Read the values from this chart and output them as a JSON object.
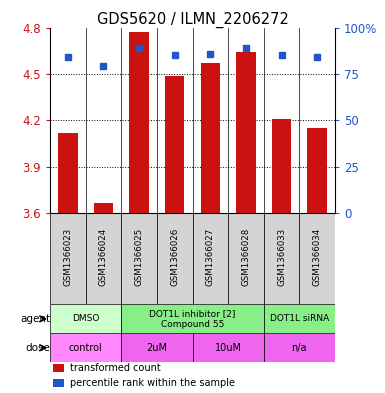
{
  "title": "GDS5620 / ILMN_2206272",
  "samples": [
    "GSM1366023",
    "GSM1366024",
    "GSM1366025",
    "GSM1366026",
    "GSM1366027",
    "GSM1366028",
    "GSM1366033",
    "GSM1366034"
  ],
  "bar_values": [
    4.12,
    3.67,
    4.77,
    4.49,
    4.57,
    4.64,
    4.21,
    4.15
  ],
  "bar_bottom": 3.6,
  "dot_values": [
    4.61,
    4.55,
    4.67,
    4.62,
    4.63,
    4.67,
    4.62,
    4.61
  ],
  "ylim": [
    3.6,
    4.8
  ],
  "y_ticks": [
    3.6,
    3.9,
    4.2,
    4.5,
    4.8
  ],
  "y_tick_labels": [
    "3.6",
    "3.9",
    "4.2",
    "4.5",
    "4.8"
  ],
  "y2_ticks": [
    0,
    25,
    50,
    75,
    100
  ],
  "y2_tick_labels": [
    "0",
    "25",
    "50",
    "75",
    "100%"
  ],
  "bar_color": "#cc1111",
  "dot_color": "#2255cc",
  "agent_groups": [
    {
      "label": "DMSO",
      "cols": [
        0,
        1
      ],
      "color": "#ccffcc"
    },
    {
      "label": "DOT1L inhibitor [2]\nCompound 55",
      "cols": [
        2,
        3,
        4,
        5
      ],
      "color": "#88ee88"
    },
    {
      "label": "DOT1L siRNA",
      "cols": [
        6,
        7
      ],
      "color": "#88ee88"
    }
  ],
  "dose_groups": [
    {
      "label": "control",
      "cols": [
        0,
        1
      ],
      "color": "#ff88ff"
    },
    {
      "label": "2uM",
      "cols": [
        2,
        3
      ],
      "color": "#ee66ee"
    },
    {
      "label": "10uM",
      "cols": [
        4,
        5
      ],
      "color": "#ee66ee"
    },
    {
      "label": "n/a",
      "cols": [
        6,
        7
      ],
      "color": "#ee66ee"
    }
  ],
  "legend_items": [
    {
      "color": "#cc1111",
      "label": "transformed count"
    },
    {
      "color": "#2255cc",
      "label": "percentile rank within the sample"
    }
  ],
  "sample_bg": "#d4d4d4",
  "axis_color_left": "#cc1111",
  "axis_color_right": "#2255cc"
}
